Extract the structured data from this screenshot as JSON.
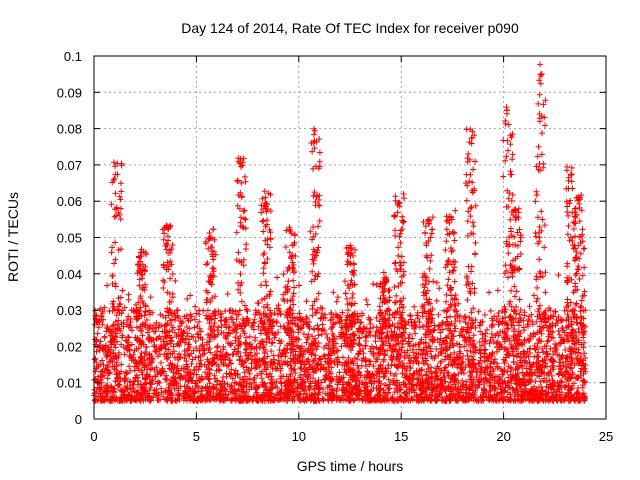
{
  "chart_data": {
    "type": "scatter",
    "title": "Day 124 of 2014, Rate Of TEC Index for receiver p090",
    "xlabel": "GPS time / hours",
    "ylabel": "ROTI / TECUs",
    "xlim": [
      0,
      25
    ],
    "ylim": [
      0,
      0.1
    ],
    "x_ticks": [
      "0",
      "5",
      "10",
      "15",
      "20",
      "25"
    ],
    "y_ticks": [
      "0",
      "0.01",
      "0.02",
      "0.03",
      "0.04",
      "0.05",
      "0.06",
      "0.07",
      "0.08",
      "0.09",
      "0.1"
    ],
    "grid": true,
    "marker": "+",
    "marker_color": "#ff0000",
    "x_range_data": [
      0,
      24
    ],
    "typical_band": [
      0.005,
      0.03
    ],
    "spikes": [
      {
        "x": 1.1,
        "y": 0.071
      },
      {
        "x": 2.3,
        "y": 0.047
      },
      {
        "x": 3.6,
        "y": 0.054
      },
      {
        "x": 5.7,
        "y": 0.053
      },
      {
        "x": 7.2,
        "y": 0.073
      },
      {
        "x": 8.4,
        "y": 0.063
      },
      {
        "x": 9.6,
        "y": 0.055
      },
      {
        "x": 10.8,
        "y": 0.08
      },
      {
        "x": 12.5,
        "y": 0.048
      },
      {
        "x": 14.2,
        "y": 0.041
      },
      {
        "x": 14.9,
        "y": 0.062
      },
      {
        "x": 16.3,
        "y": 0.057
      },
      {
        "x": 17.4,
        "y": 0.058
      },
      {
        "x": 18.4,
        "y": 0.08
      },
      {
        "x": 20.2,
        "y": 0.088
      },
      {
        "x": 20.6,
        "y": 0.058
      },
      {
        "x": 21.8,
        "y": 0.098
      },
      {
        "x": 23.3,
        "y": 0.071
      },
      {
        "x": 23.7,
        "y": 0.062
      }
    ]
  }
}
